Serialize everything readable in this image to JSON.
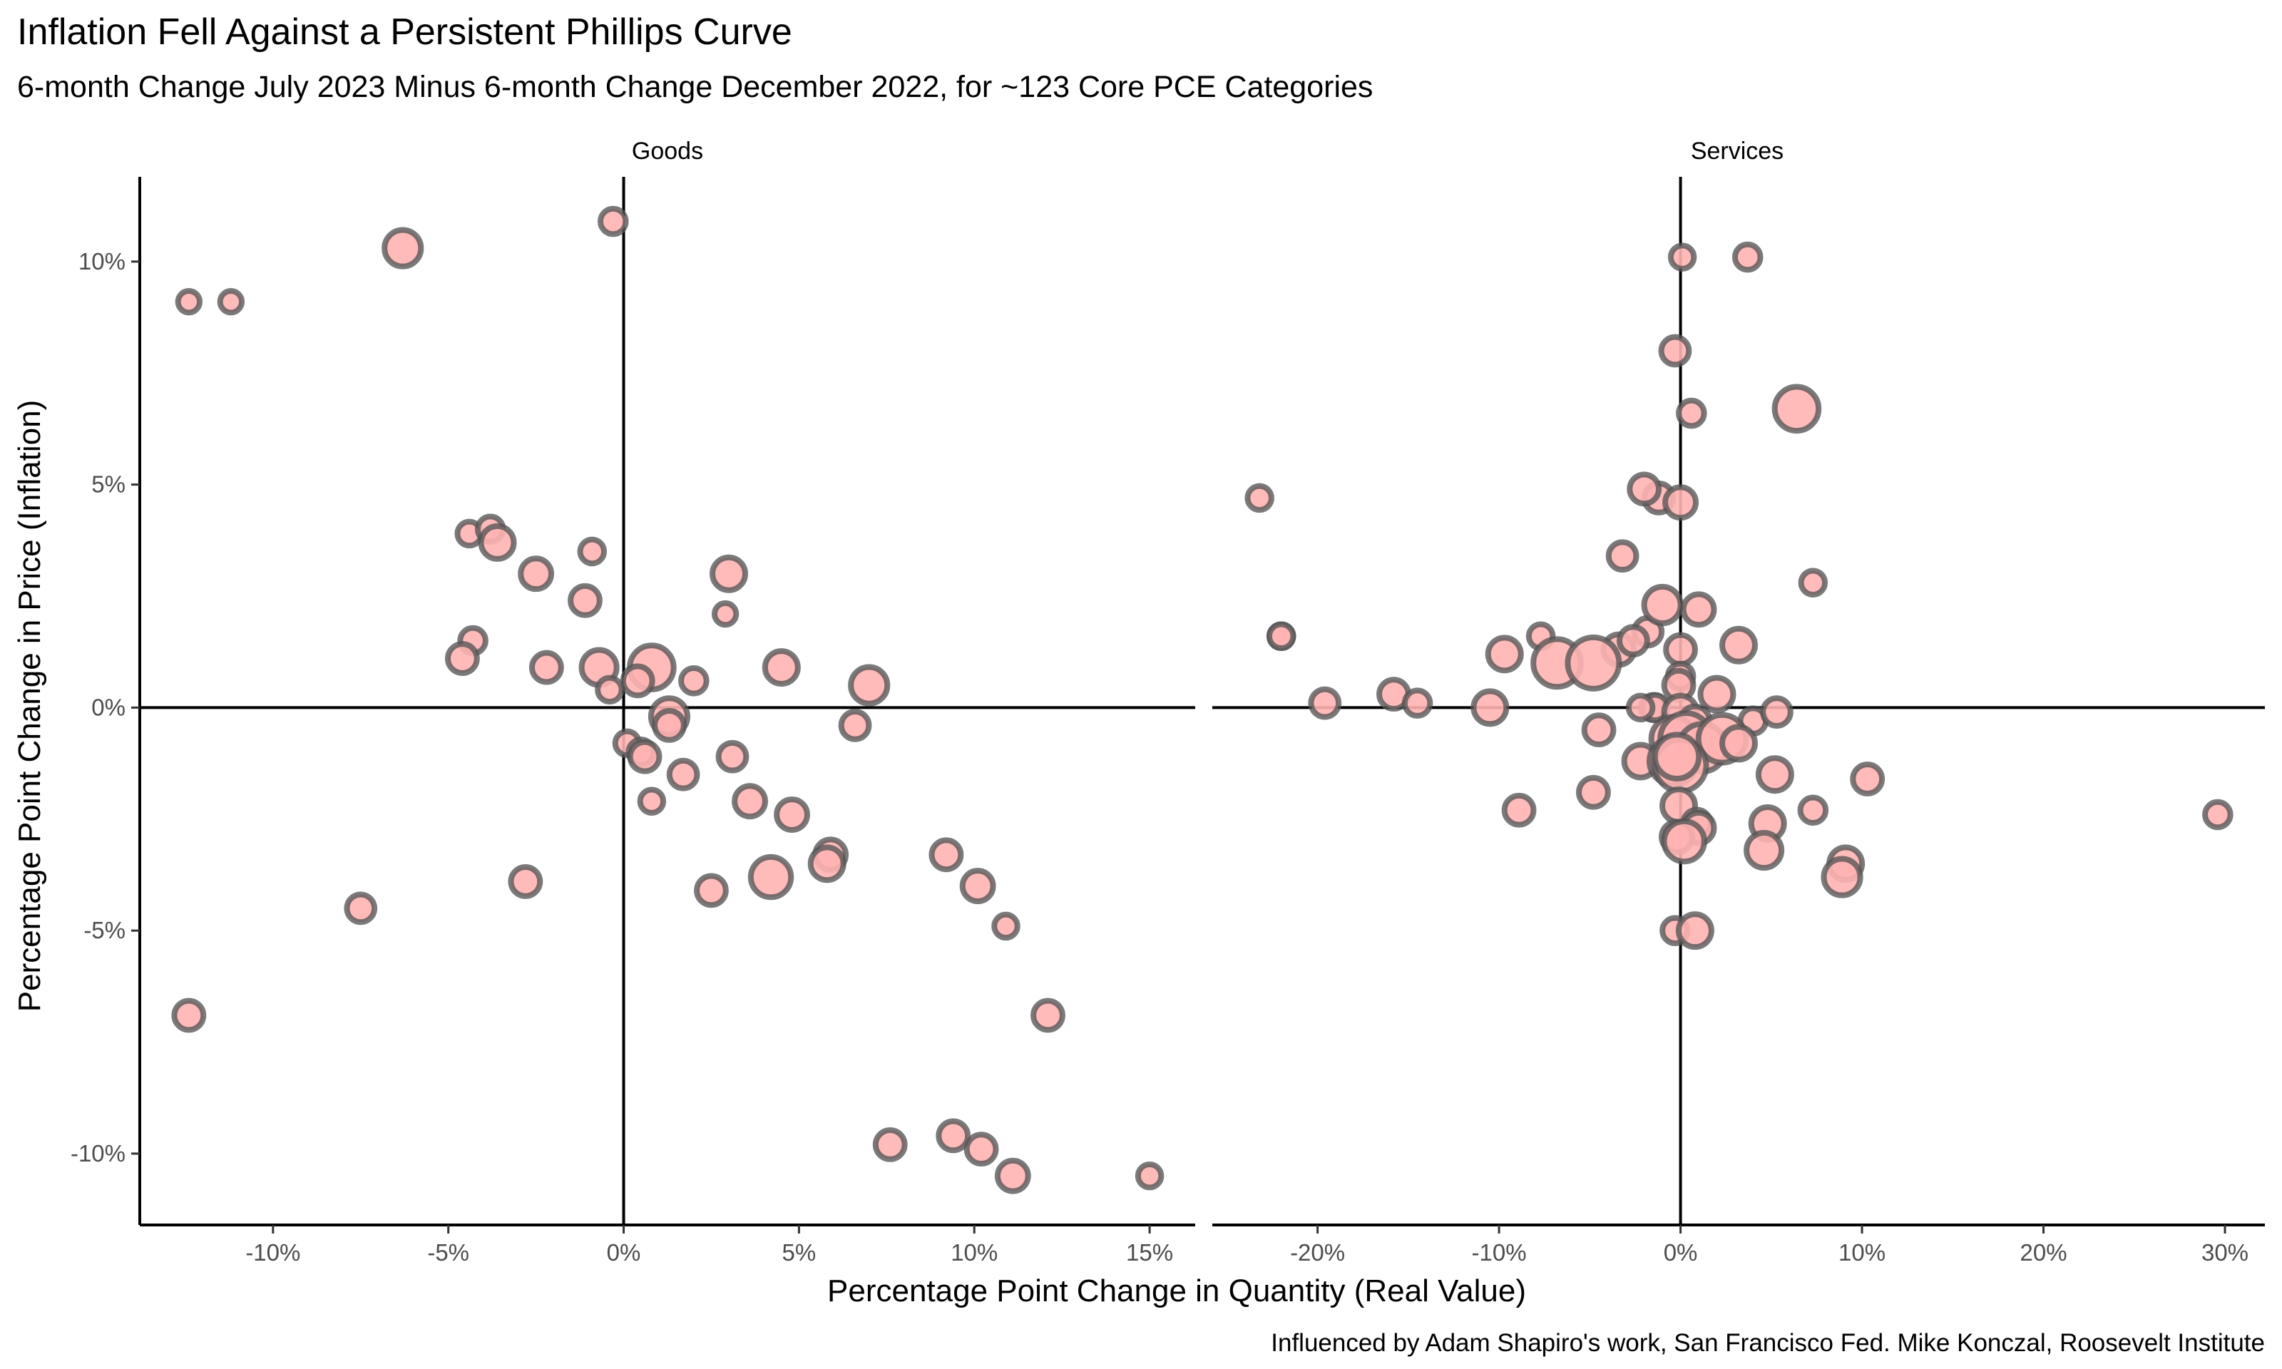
{
  "chart_data": {
    "type": "scatter",
    "title": "Inflation Fell Against a Persistent Phillips Curve",
    "subtitle": "6-month Change July 2023 Minus 6-month Change December 2022, for ~123 Core PCE Categories",
    "xlabel": "Percentage Point Change in Quantity (Real Value)",
    "ylabel": "Percentage Point Change in Price (Inflation)",
    "caption": "Influenced by Adam Shapiro's work, San Francisco Fed. Mike Konczal, Roosevelt Institute",
    "grid": false,
    "legend": "none",
    "colors": {
      "fill": "#ffb3b3",
      "stroke": "#555555"
    },
    "y_axis": {
      "ylim": [
        -11.6,
        11.9
      ],
      "ticks": [
        10,
        5,
        0,
        -5,
        -10
      ],
      "tick_labels": [
        "10%",
        "5%",
        "0%",
        "-5%",
        "-10%"
      ]
    },
    "panels": [
      {
        "label": "Goods",
        "xlim": [
          -13.8,
          16.3
        ],
        "x_ticks": [
          -10,
          -5,
          0,
          5,
          10,
          15
        ],
        "x_tick_labels": [
          "-10%",
          "-5%",
          "0%",
          "5%",
          "10%",
          "15%"
        ],
        "points": [
          {
            "x": -12.4,
            "y": 9.1,
            "w": 1
          },
          {
            "x": -11.2,
            "y": 9.1,
            "w": 1
          },
          {
            "x": -6.3,
            "y": 10.3,
            "w": 3
          },
          {
            "x": -0.3,
            "y": 10.9,
            "w": 1.5
          },
          {
            "x": -4.4,
            "y": 3.9,
            "w": 1.3
          },
          {
            "x": -3.8,
            "y": 4.0,
            "w": 1.5
          },
          {
            "x": -3.6,
            "y": 3.7,
            "w": 2.5
          },
          {
            "x": -2.5,
            "y": 3.0,
            "w": 2.2
          },
          {
            "x": -0.9,
            "y": 3.5,
            "w": 1.3
          },
          {
            "x": -1.1,
            "y": 2.4,
            "w": 2
          },
          {
            "x": -4.3,
            "y": 1.5,
            "w": 1.5
          },
          {
            "x": -4.6,
            "y": 1.1,
            "w": 2
          },
          {
            "x": -2.2,
            "y": 0.9,
            "w": 2
          },
          {
            "x": -0.7,
            "y": 0.9,
            "w": 2.8
          },
          {
            "x": -0.4,
            "y": 0.4,
            "w": 1.3
          },
          {
            "x": 0.8,
            "y": 0.9,
            "w": 4
          },
          {
            "x": 0.4,
            "y": 0.6,
            "w": 2
          },
          {
            "x": 2.0,
            "y": 0.6,
            "w": 1.5
          },
          {
            "x": 3.0,
            "y": 3.0,
            "w": 2.5
          },
          {
            "x": 2.9,
            "y": 2.1,
            "w": 1
          },
          {
            "x": 4.5,
            "y": 0.9,
            "w": 2.5
          },
          {
            "x": 7.0,
            "y": 0.5,
            "w": 3
          },
          {
            "x": 1.3,
            "y": -0.2,
            "w": 3
          },
          {
            "x": 1.3,
            "y": -0.4,
            "w": 2
          },
          {
            "x": 0.1,
            "y": -0.8,
            "w": 1.3
          },
          {
            "x": 0.5,
            "y": -1.0,
            "w": 1.5
          },
          {
            "x": 0.6,
            "y": -1.1,
            "w": 2
          },
          {
            "x": 1.7,
            "y": -1.5,
            "w": 1.8
          },
          {
            "x": 3.1,
            "y": -1.1,
            "w": 1.8
          },
          {
            "x": 0.8,
            "y": -2.1,
            "w": 1.2
          },
          {
            "x": 3.6,
            "y": -2.1,
            "w": 2.2
          },
          {
            "x": 4.8,
            "y": -2.4,
            "w": 2.2
          },
          {
            "x": 6.6,
            "y": -0.4,
            "w": 1.8
          },
          {
            "x": 5.9,
            "y": -3.3,
            "w": 2.2
          },
          {
            "x": 5.8,
            "y": -3.5,
            "w": 2.5
          },
          {
            "x": 4.2,
            "y": -3.8,
            "w": 3.5
          },
          {
            "x": 2.5,
            "y": -4.1,
            "w": 2
          },
          {
            "x": -2.8,
            "y": -3.9,
            "w": 2
          },
          {
            "x": -7.5,
            "y": -4.5,
            "w": 1.8
          },
          {
            "x": -12.4,
            "y": -6.9,
            "w": 2
          },
          {
            "x": 9.2,
            "y": -3.3,
            "w": 2
          },
          {
            "x": 10.1,
            "y": -4.0,
            "w": 2.2
          },
          {
            "x": 10.9,
            "y": -4.9,
            "w": 1.2
          },
          {
            "x": 12.1,
            "y": -6.9,
            "w": 2
          },
          {
            "x": 7.6,
            "y": -9.8,
            "w": 2
          },
          {
            "x": 9.4,
            "y": -9.6,
            "w": 2
          },
          {
            "x": 10.2,
            "y": -9.9,
            "w": 2
          },
          {
            "x": 11.1,
            "y": -10.5,
            "w": 2.2
          },
          {
            "x": 15.0,
            "y": -10.5,
            "w": 1.2
          }
        ]
      },
      {
        "label": "Services",
        "xlim": [
          -25.8,
          32.2
        ],
        "x_ticks": [
          -20,
          -10,
          0,
          10,
          20,
          30
        ],
        "x_tick_labels": [
          "-20%",
          "-10%",
          "0%",
          "10%",
          "20%",
          "30%"
        ],
        "points": [
          {
            "x": 0.1,
            "y": 10.1,
            "w": 1.2
          },
          {
            "x": 3.7,
            "y": 10.1,
            "w": 1.5
          },
          {
            "x": -0.3,
            "y": 8.0,
            "w": 1.8
          },
          {
            "x": 0.6,
            "y": 6.6,
            "w": 1.5
          },
          {
            "x": 6.4,
            "y": 6.7,
            "w": 4
          },
          {
            "x": -23.2,
            "y": 4.7,
            "w": 1.3
          },
          {
            "x": -1.2,
            "y": 4.7,
            "w": 2
          },
          {
            "x": -2.0,
            "y": 4.9,
            "w": 2
          },
          {
            "x": 0.0,
            "y": 4.6,
            "w": 2.2
          },
          {
            "x": -1.8,
            "y": 1.7,
            "w": 1.8
          },
          {
            "x": -3.2,
            "y": 3.4,
            "w": 1.8
          },
          {
            "x": 7.3,
            "y": 2.8,
            "w": 1.3
          },
          {
            "x": -1.0,
            "y": 2.3,
            "w": 3
          },
          {
            "x": 1.0,
            "y": 2.2,
            "w": 2.2
          },
          {
            "x": 3.2,
            "y": 1.4,
            "w": 2.5
          },
          {
            "x": -22.0,
            "y": 1.6,
            "w": 1.3
          },
          {
            "x": -22.0,
            "y": 1.6,
            "w": 1.3
          },
          {
            "x": -7.7,
            "y": 1.6,
            "w": 1.3
          },
          {
            "x": -9.7,
            "y": 1.2,
            "w": 2.5
          },
          {
            "x": -3.4,
            "y": 1.3,
            "w": 2.2
          },
          {
            "x": -2.6,
            "y": 1.5,
            "w": 1.8
          },
          {
            "x": 0.0,
            "y": 1.3,
            "w": 2
          },
          {
            "x": -6.8,
            "y": 1.0,
            "w": 4.5
          },
          {
            "x": -4.8,
            "y": 1.0,
            "w": 5
          },
          {
            "x": 0.0,
            "y": 0.7,
            "w": 1.5
          },
          {
            "x": -0.1,
            "y": 0.5,
            "w": 2
          },
          {
            "x": 2.0,
            "y": 0.3,
            "w": 2.5
          },
          {
            "x": -15.8,
            "y": 0.3,
            "w": 2
          },
          {
            "x": -14.5,
            "y": 0.1,
            "w": 1.5
          },
          {
            "x": -19.6,
            "y": 0.1,
            "w": 1.8
          },
          {
            "x": -10.5,
            "y": 0.0,
            "w": 2.5
          },
          {
            "x": -1.5,
            "y": 0.0,
            "w": 1.5
          },
          {
            "x": -1.4,
            "y": 0.0,
            "w": 1.5
          },
          {
            "x": -2.2,
            "y": 0.0,
            "w": 1.3
          },
          {
            "x": 0.0,
            "y": -0.1,
            "w": 2.5
          },
          {
            "x": 0.8,
            "y": -0.3,
            "w": 2
          },
          {
            "x": 4.0,
            "y": -0.3,
            "w": 1.5
          },
          {
            "x": 5.3,
            "y": -0.1,
            "w": 1.8
          },
          {
            "x": -4.5,
            "y": -0.5,
            "w": 2
          },
          {
            "x": -0.4,
            "y": -0.7,
            "w": 4
          },
          {
            "x": 0.3,
            "y": -0.7,
            "w": 5
          },
          {
            "x": 1.2,
            "y": -0.9,
            "w": 4.5
          },
          {
            "x": 2.3,
            "y": -0.7,
            "w": 4.5
          },
          {
            "x": 3.2,
            "y": -0.8,
            "w": 2.5
          },
          {
            "x": -2.2,
            "y": -1.2,
            "w": 2.5
          },
          {
            "x": -0.4,
            "y": -1.2,
            "w": 4.5
          },
          {
            "x": 0.0,
            "y": -1.3,
            "w": 5
          },
          {
            "x": -0.2,
            "y": -1.1,
            "w": 4
          },
          {
            "x": 5.2,
            "y": -1.5,
            "w": 2.5
          },
          {
            "x": 10.3,
            "y": -1.6,
            "w": 2
          },
          {
            "x": -4.8,
            "y": -1.9,
            "w": 2
          },
          {
            "x": -8.9,
            "y": -2.3,
            "w": 2
          },
          {
            "x": -0.1,
            "y": -2.2,
            "w": 2.5
          },
          {
            "x": 7.3,
            "y": -2.3,
            "w": 1.5
          },
          {
            "x": 0.9,
            "y": -2.6,
            "w": 1.8
          },
          {
            "x": 1.0,
            "y": -2.7,
            "w": 2.2
          },
          {
            "x": 4.8,
            "y": -2.6,
            "w": 2.5
          },
          {
            "x": 29.6,
            "y": -2.4,
            "w": 1.5
          },
          {
            "x": -0.2,
            "y": -2.9,
            "w": 2.2
          },
          {
            "x": 0.2,
            "y": -3.0,
            "w": 3.5
          },
          {
            "x": 4.6,
            "y": -3.2,
            "w": 2.8
          },
          {
            "x": 9.1,
            "y": -3.5,
            "w": 2.5
          },
          {
            "x": 8.9,
            "y": -3.8,
            "w": 3
          },
          {
            "x": -0.3,
            "y": -5.0,
            "w": 1.5
          },
          {
            "x": 0.8,
            "y": -5.0,
            "w": 2.5
          }
        ]
      }
    ]
  }
}
